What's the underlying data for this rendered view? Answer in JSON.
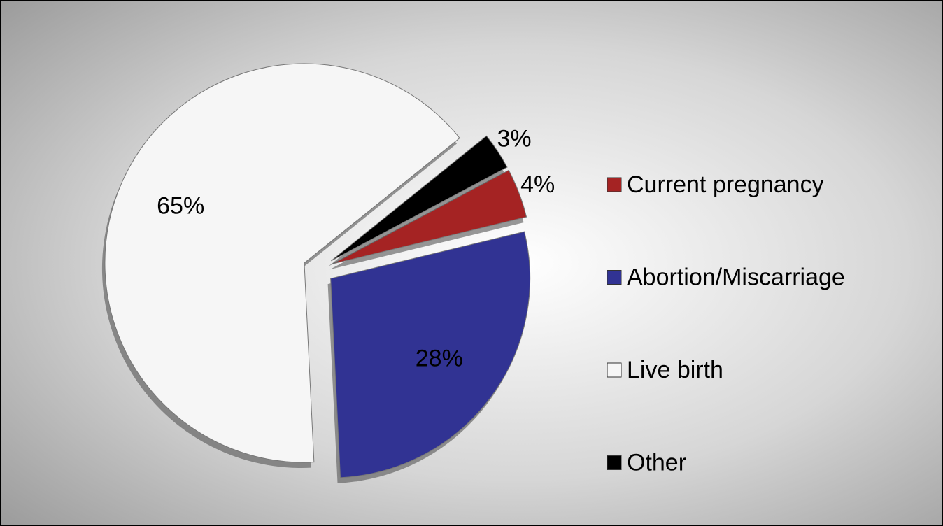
{
  "chart_data": {
    "type": "pie",
    "categories": [
      "Current pregnancy",
      "Abortion/Miscarriage",
      "Live birth",
      "Other"
    ],
    "values": [
      4,
      28,
      65,
      3
    ],
    "value_labels": [
      "4%",
      "28%",
      "65%",
      "3%"
    ],
    "colors": [
      "#a52323",
      "#313393",
      "#f6f6f6",
      "#000000"
    ],
    "legend": "right"
  }
}
